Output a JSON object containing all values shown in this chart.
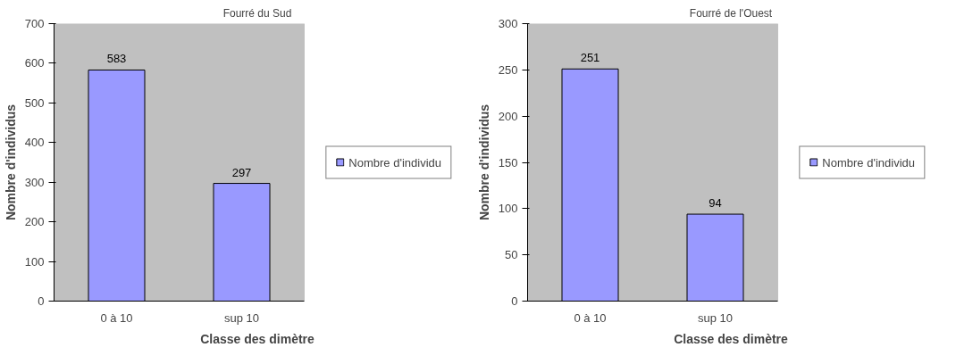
{
  "chart_data": [
    {
      "type": "bar",
      "title": "Fourré du Sud",
      "xlabel": "Classe des dimètre",
      "ylabel": "Nombre d'individus",
      "categories": [
        "0 à 10",
        "sup 10"
      ],
      "series": [
        {
          "name": "Nombre d'individu",
          "color": "#9999ff",
          "values": [
            583,
            297
          ]
        }
      ],
      "ylim": [
        0,
        700
      ],
      "yticks": [
        0,
        100,
        200,
        300,
        400,
        500,
        600,
        700
      ],
      "data_labels": true,
      "legend": "right",
      "grid": false
    },
    {
      "type": "bar",
      "title": "Fourré de l'Ouest",
      "xlabel": "Classe des dimètre",
      "ylabel": "Nombre d'individus",
      "categories": [
        "0 à 10",
        "sup 10"
      ],
      "series": [
        {
          "name": "Nombre d'individu",
          "color": "#9999ff",
          "values": [
            251,
            94
          ]
        }
      ],
      "ylim": [
        0,
        300
      ],
      "yticks": [
        0,
        50,
        100,
        150,
        200,
        250,
        300
      ],
      "data_labels": true,
      "legend": "right",
      "grid": false
    }
  ]
}
